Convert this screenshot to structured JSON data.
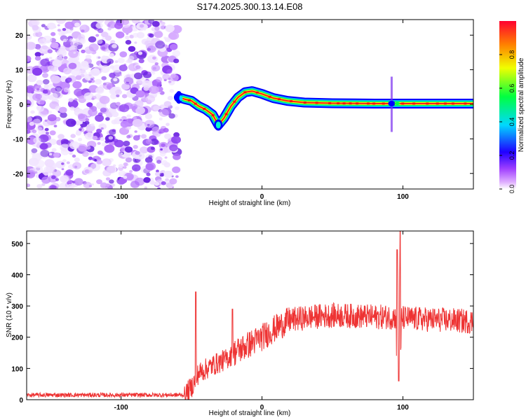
{
  "figure": {
    "title": "S174.2025.300.13.14.E08"
  },
  "chart_data": [
    {
      "type": "heatmap",
      "title": "S174.2025.300.13.14.E08",
      "xlabel": "Height of straight line (km)",
      "ylabel": "Frequency (Hz)",
      "xlim": [
        -167,
        150
      ],
      "ylim": [
        -24.5,
        24.5
      ],
      "x_ticks": [
        {
          "value": -100,
          "label": "-100"
        },
        {
          "value": 0,
          "label": "0"
        },
        {
          "value": 100,
          "label": "100"
        }
      ],
      "y_ticks": [
        {
          "value": 20,
          "label": "20"
        },
        {
          "value": 10,
          "label": "10"
        },
        {
          "value": 0,
          "label": "0"
        },
        {
          "value": -10,
          "label": "-10"
        },
        {
          "value": -20,
          "label": "-20"
        }
      ],
      "noise_region_x": [
        -167,
        -60
      ],
      "ridge": [
        {
          "x": -59,
          "f": 2.0
        },
        {
          "x": -55,
          "f": 1.5
        },
        {
          "x": -50,
          "f": 1.0
        },
        {
          "x": -45,
          "f": -0.5
        },
        {
          "x": -40,
          "f": -1.5
        },
        {
          "x": -35,
          "f": -3.0
        },
        {
          "x": -31,
          "f": -6.0
        },
        {
          "x": -27,
          "f": -4.0
        },
        {
          "x": -22,
          "f": -0.5
        },
        {
          "x": -17,
          "f": 2.0
        },
        {
          "x": -12,
          "f": 3.5
        },
        {
          "x": -7,
          "f": 3.8
        },
        {
          "x": 0,
          "f": 3.0
        },
        {
          "x": 8,
          "f": 1.8
        },
        {
          "x": 18,
          "f": 1.0
        },
        {
          "x": 30,
          "f": 0.5
        },
        {
          "x": 50,
          "f": 0.3
        },
        {
          "x": 80,
          "f": 0.2
        },
        {
          "x": 100,
          "f": 0.2
        },
        {
          "x": 150,
          "f": 0.2
        }
      ],
      "spike": {
        "x": 92,
        "f_range": [
          -8,
          8
        ]
      },
      "colorbar": {
        "label": "Normalized spectral amplitude",
        "range": [
          0,
          1
        ],
        "ticks": [
          "0.0",
          "0.2",
          "0.4",
          "0.6",
          "0.8"
        ],
        "colors": [
          "#ffffff",
          "#d070ff",
          "#6000ff",
          "#0000ff",
          "#00ffff",
          "#00ff00",
          "#ffff00",
          "#ff0000"
        ]
      }
    },
    {
      "type": "line",
      "xlabel": "Height of straight line (km)",
      "ylabel": "SNR (10 * v/v)",
      "xlim": [
        -167,
        150
      ],
      "ylim": [
        0,
        540
      ],
      "x_ticks": [
        {
          "value": -100,
          "label": "-100"
        },
        {
          "value": 0,
          "label": "0"
        },
        {
          "value": 100,
          "label": "100"
        }
      ],
      "y_ticks": [
        {
          "value": 500,
          "label": "500"
        },
        {
          "value": 400,
          "label": "400"
        },
        {
          "value": 300,
          "label": "300"
        },
        {
          "value": 200,
          "label": "200"
        },
        {
          "value": 100,
          "label": "100"
        },
        {
          "value": 0,
          "label": "0"
        }
      ],
      "color": "#ee3333",
      "envelope": [
        {
          "x": -167,
          "y": 15
        },
        {
          "x": -55,
          "y": 15
        },
        {
          "x": -50,
          "y": 40
        },
        {
          "x": -45,
          "y": 85
        },
        {
          "x": -35,
          "y": 110
        },
        {
          "x": -25,
          "y": 130
        },
        {
          "x": -20,
          "y": 150
        },
        {
          "x": -10,
          "y": 175
        },
        {
          "x": 0,
          "y": 200
        },
        {
          "x": 10,
          "y": 230
        },
        {
          "x": 20,
          "y": 255
        },
        {
          "x": 35,
          "y": 265
        },
        {
          "x": 50,
          "y": 270
        },
        {
          "x": 65,
          "y": 268
        },
        {
          "x": 80,
          "y": 265
        },
        {
          "x": 90,
          "y": 265
        },
        {
          "x": 110,
          "y": 258
        },
        {
          "x": 130,
          "y": 255
        },
        {
          "x": 150,
          "y": 250
        }
      ],
      "spikes": [
        {
          "x": -47,
          "peak": 345,
          "base": 40
        },
        {
          "x": -21,
          "peak": 290,
          "base": 150
        },
        {
          "x": 96,
          "peak": 480,
          "base": 40
        },
        {
          "x": 98,
          "peak": 540,
          "base": 50
        },
        {
          "x": 97,
          "peak": 60,
          "base": 260
        }
      ]
    }
  ]
}
